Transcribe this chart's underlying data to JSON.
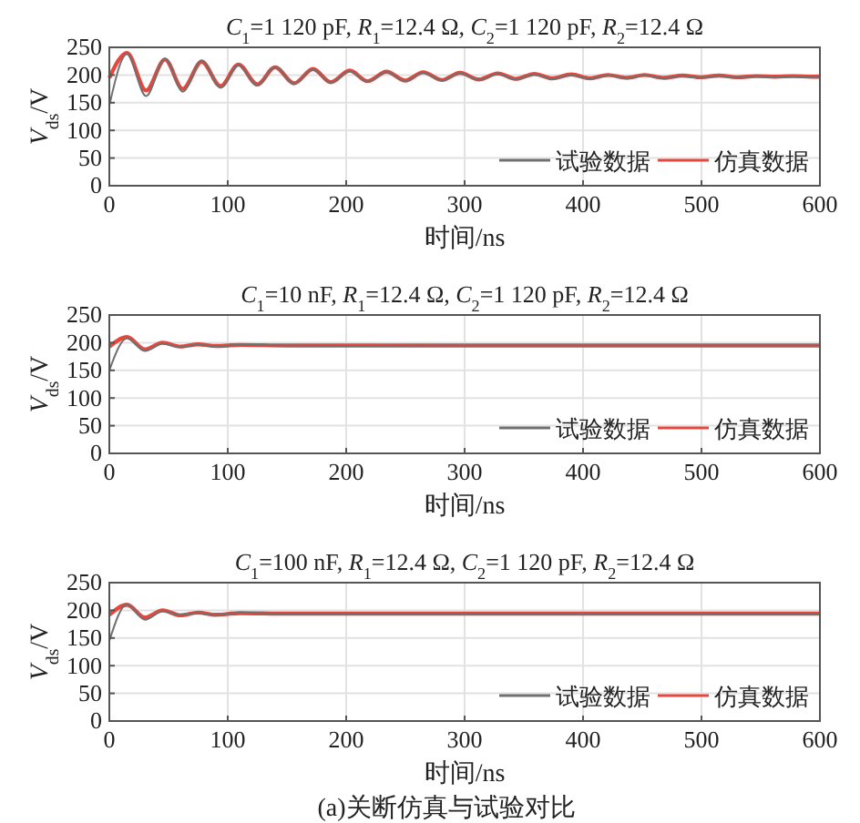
{
  "chart_data": [
    {
      "type": "line",
      "title": "C$_{1}$=1 120 pF, R$_{1}$=12.4 Ω, C$_{2}$=1 120 pF, R$_{2}$=12.4 Ω",
      "xlabel": "时间/ns",
      "ylabel": "V$_{ds}$/V",
      "xlim": [
        0,
        600
      ],
      "xticks": [
        0,
        100,
        200,
        300,
        400,
        500,
        600
      ],
      "ylim": [
        0,
        250
      ],
      "yticks": [
        0,
        50,
        100,
        150,
        200,
        250
      ],
      "grid": true,
      "legend": "bottom right",
      "line_style": "solid",
      "series": [
        {
          "name": "试验数据",
          "color": "#707070",
          "x": [
            0,
            15,
            31,
            47,
            62,
            78,
            94,
            109,
            125,
            140,
            156,
            172,
            187,
            203,
            218,
            234,
            250,
            265,
            281,
            296,
            312,
            328,
            343,
            359,
            374,
            390,
            406,
            421,
            437,
            452,
            468,
            484,
            499,
            515,
            530,
            546,
            562,
            577,
            593,
            600
          ],
          "values": [
            145,
            238,
            162,
            230,
            170,
            226,
            177,
            218,
            181,
            215,
            184,
            210,
            186,
            207,
            188,
            205,
            189,
            204,
            190,
            203,
            191,
            202,
            192,
            201,
            193,
            200,
            193,
            199,
            194,
            199,
            194,
            198,
            195,
            198,
            195,
            198,
            196,
            197,
            196,
            197
          ]
        },
        {
          "name": "仿真数据",
          "color": "#e8473c",
          "x": [
            0,
            15,
            31,
            47,
            62,
            78,
            94,
            109,
            125,
            140,
            156,
            172,
            187,
            203,
            218,
            234,
            250,
            265,
            281,
            296,
            312,
            328,
            343,
            359,
            374,
            390,
            406,
            421,
            437,
            452,
            468,
            484,
            499,
            515,
            530,
            546,
            562,
            577,
            593,
            600
          ],
          "values": [
            195,
            240,
            172,
            228,
            175,
            224,
            180,
            219,
            183,
            214,
            185,
            211,
            187,
            208,
            189,
            206,
            190,
            205,
            191,
            204,
            192,
            203,
            193,
            202,
            194,
            201,
            194,
            200,
            195,
            200,
            195,
            199,
            196,
            199,
            196,
            198,
            197,
            198,
            197,
            197
          ]
        }
      ]
    },
    {
      "type": "line",
      "title": "C$_{1}$=10 nF, R$_{1}$=12.4 Ω, C$_{2}$=1 120 pF, R$_{2}$=12.4 Ω",
      "xlabel": "时间/ns",
      "ylabel": "V$_{ds}$/V",
      "xlim": [
        0,
        600
      ],
      "xticks": [
        0,
        100,
        200,
        300,
        400,
        500,
        600
      ],
      "ylim": [
        0,
        250
      ],
      "yticks": [
        0,
        50,
        100,
        150,
        200,
        250
      ],
      "grid": true,
      "legend": "bottom right",
      "line_style": "solid",
      "series": [
        {
          "name": "试验数据",
          "color": "#707070",
          "x": [
            0,
            15,
            30,
            45,
            60,
            75,
            90,
            110,
            150,
            200,
            300,
            600
          ],
          "values": [
            150,
            208,
            185,
            198,
            192,
            196,
            193,
            196,
            195,
            194,
            195,
            195
          ]
        },
        {
          "name": "仿真数据",
          "color": "#e8473c",
          "x": [
            0,
            15,
            30,
            45,
            60,
            75,
            90,
            110,
            150,
            200,
            300,
            600
          ],
          "values": [
            193,
            210,
            188,
            200,
            193,
            197,
            194,
            196,
            195,
            195,
            195,
            195
          ]
        }
      ]
    },
    {
      "type": "line",
      "title": "C$_{1}$=100 nF, R$_{1}$=12.4 Ω, C$_{2}$=1 120 pF, R$_{2}$=12.4 Ω",
      "xlabel": "时间/ns",
      "ylabel": "V$_{ds}$/V",
      "xlim": [
        0,
        600
      ],
      "xticks": [
        0,
        100,
        200,
        300,
        400,
        500,
        600
      ],
      "ylim": [
        0,
        250
      ],
      "yticks": [
        0,
        50,
        100,
        150,
        200,
        250
      ],
      "grid": true,
      "legend": "bottom right",
      "line_style": "solid",
      "annotations": [
        "(a)关断仿真与试验对比"
      ],
      "series": [
        {
          "name": "试验数据",
          "color": "#707070",
          "x": [
            0,
            15,
            30,
            45,
            60,
            75,
            90,
            110,
            150,
            300,
            600
          ],
          "values": [
            145,
            211,
            183,
            198,
            192,
            195,
            191,
            196,
            194,
            194,
            194
          ]
        },
        {
          "name": "仿真数据",
          "color": "#e8473c",
          "x": [
            0,
            15,
            30,
            45,
            60,
            75,
            90,
            110,
            150,
            300,
            600
          ],
          "values": [
            192,
            210,
            187,
            200,
            191,
            196,
            192,
            195,
            194,
            194,
            194
          ]
        }
      ]
    }
  ]
}
